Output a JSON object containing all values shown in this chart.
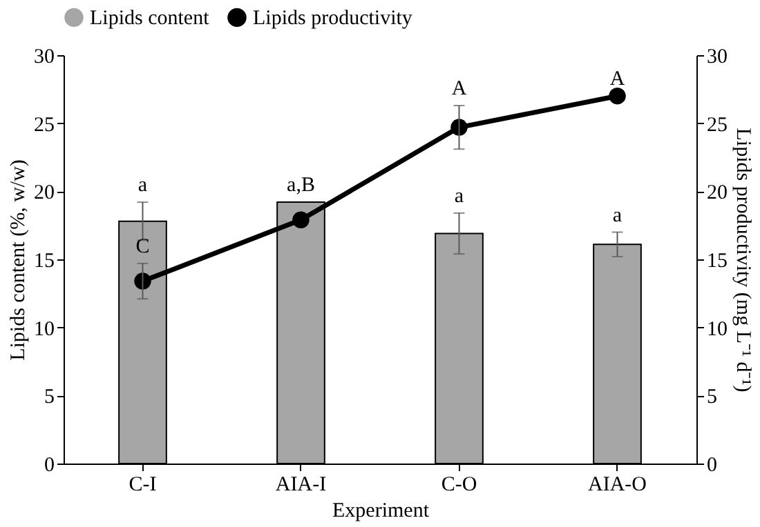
{
  "chart_data": {
    "type": "bar",
    "xlabel": "Experiment",
    "ylabel": "Lipids content (%, w/w)",
    "y2label": "Lipids  productivity (mg L⁻¹ d⁻¹)",
    "categories": [
      "C-I",
      "AIA-I",
      "C-O",
      "AIA-O"
    ],
    "series": [
      {
        "name": "Lipids content",
        "color": "#a6a6a6",
        "values": [
          17.8,
          19.2,
          16.9,
          16.1
        ],
        "errors": [
          1.4,
          null,
          1.5,
          0.9
        ]
      },
      {
        "name": "Lipids productivity",
        "type": "line",
        "axis": "y2",
        "color": "#000000",
        "marker": "circle",
        "values": [
          13.4,
          17.9,
          24.7,
          27.0
        ],
        "errors": [
          1.3,
          null,
          1.6,
          null
        ]
      }
    ],
    "ylim": [
      0,
      30
    ],
    "yticks": [
      0,
      5,
      10,
      15,
      20,
      25,
      30
    ],
    "y2lim": [
      0,
      30
    ],
    "y2ticks": [
      0,
      5,
      10,
      15,
      20,
      25,
      30
    ],
    "grid": false,
    "legend": "top",
    "annotations": [
      {
        "text": "a",
        "x": "C-I",
        "y": 19.2
      },
      {
        "text": "C",
        "x": "C-I",
        "y": 14.7
      },
      {
        "text": "a,B",
        "x": "AIA-I",
        "y": 19.2
      },
      {
        "text": "a",
        "x": "C-O",
        "y": 18.4
      },
      {
        "text": "A",
        "x": "C-O",
        "y": 26.3
      },
      {
        "text": "a",
        "x": "AIA-O",
        "y": 17.0
      },
      {
        "text": "A",
        "x": "AIA-O",
        "y": 27.0
      }
    ]
  }
}
